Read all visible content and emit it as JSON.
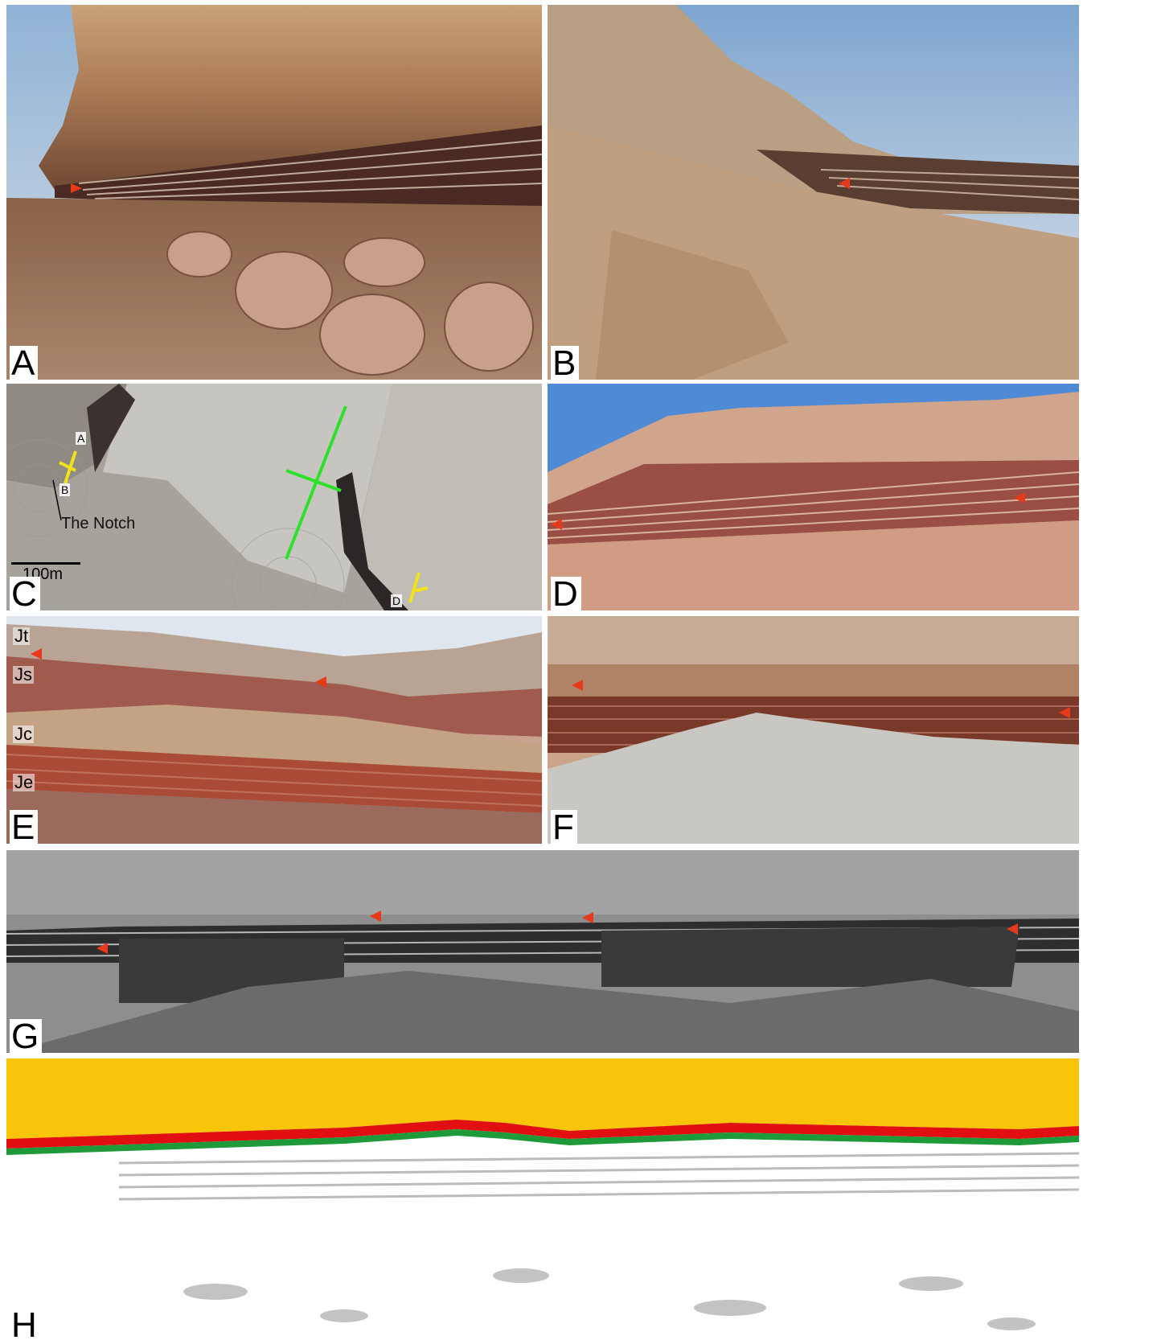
{
  "figure": {
    "panels": [
      {
        "id": "A",
        "letter": "A"
      },
      {
        "id": "B",
        "letter": "B"
      },
      {
        "id": "C",
        "letter": "C"
      },
      {
        "id": "D",
        "letter": "D"
      },
      {
        "id": "E",
        "letter": "E"
      },
      {
        "id": "F",
        "letter": "F"
      },
      {
        "id": "G",
        "letter": "G"
      },
      {
        "id": "H",
        "letter": "H"
      }
    ]
  },
  "panel_c": {
    "scale_label": "100m",
    "notch_label": "The Notch",
    "marker_a": "A",
    "marker_b": "B",
    "marker_d": "D"
  },
  "panel_e": {
    "units": [
      "Jt",
      "Js",
      "Jc",
      "Je"
    ]
  },
  "colors": {
    "arrow": "#e8391d",
    "section_line": "#f2e21c",
    "fold_axis": "#2fe02a",
    "overlay_yellow": "#f9c50a",
    "overlay_red": "#e10f12",
    "overlay_green": "#1f9a3b",
    "overlay_gray": "#b4b4b4"
  }
}
